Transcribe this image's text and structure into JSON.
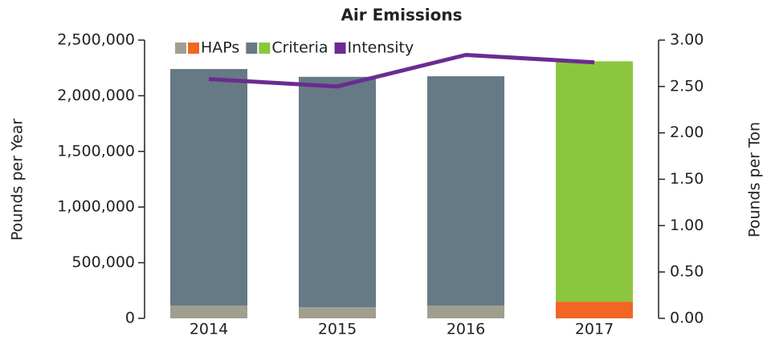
{
  "chart_data": {
    "type": "bar",
    "stacked": true,
    "title": "Air Emissions",
    "y_label": "Pounds per Year",
    "y2_label": "Pounds per Ton",
    "categories": [
      "2014",
      "2015",
      "2016",
      "2017"
    ],
    "series": [
      {
        "name": "HAPs",
        "colors": [
          "#a09f8f",
          "#a09f8f",
          "#a09f8f",
          "#f26522"
        ],
        "values": [
          115000,
          100000,
          115000,
          150000
        ]
      },
      {
        "name": "Criteria",
        "colors": [
          "#667a85",
          "#667a85",
          "#667a85",
          "#8cc63f"
        ],
        "values": [
          2125000,
          2070000,
          2060000,
          2160000
        ]
      },
      {
        "name": "Intensity",
        "type": "line",
        "axis": "y2",
        "color": "#6a2c91",
        "values": [
          2.58,
          2.5,
          2.84,
          2.76
        ]
      }
    ],
    "ylim": [
      0,
      2500000
    ],
    "yticks": [
      0,
      {
        "value": 500000,
        "label": "500,000"
      },
      {
        "value": 1000000,
        "label": "1,000,000"
      },
      {
        "value": 1500000,
        "label": "1,500,000"
      },
      {
        "value": 2000000,
        "label": "2,000,000"
      },
      {
        "value": 2500000,
        "label": "2,500,000"
      }
    ],
    "y2lim": [
      0,
      3
    ],
    "y2ticks": [
      {
        "value": 0,
        "label": "0.00"
      },
      {
        "value": 0.5,
        "label": "0.50"
      },
      {
        "value": 1,
        "label": "1.00"
      },
      {
        "value": 1.5,
        "label": "1.50"
      },
      {
        "value": 2,
        "label": "2.00"
      },
      {
        "value": 2.5,
        "label": "2.50"
      },
      {
        "value": 3,
        "label": "3.00"
      }
    ],
    "legend": "top"
  }
}
